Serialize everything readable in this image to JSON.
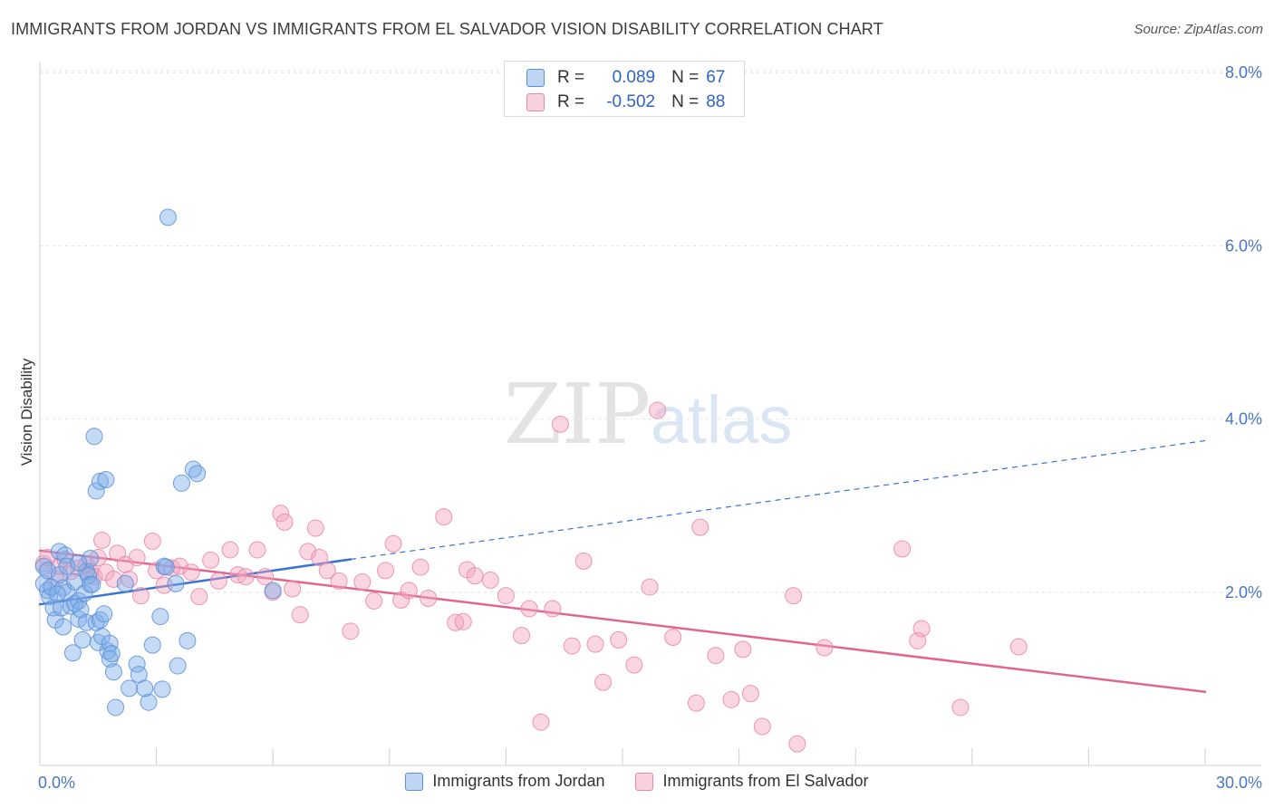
{
  "title": "IMMIGRANTS FROM JORDAN VS IMMIGRANTS FROM EL SALVADOR VISION DISABILITY CORRELATION CHART",
  "source": "Source: ZipAtlas.com",
  "watermark": {
    "zip": "ZIP",
    "atlas": "atlas"
  },
  "legend_top": [
    {
      "r_label": "R =",
      "r_value": "0.089",
      "n_label": "N =",
      "n_value": "67",
      "color": "#7faee8"
    },
    {
      "r_label": "R =",
      "r_value": "-0.502",
      "n_label": "N =",
      "n_value": "88",
      "color": "#f2a3be"
    }
  ],
  "chart_data": {
    "type": "scatter",
    "title": "IMMIGRANTS FROM JORDAN VS IMMIGRANTS FROM EL SALVADOR VISION DISABILITY CORRELATION CHART",
    "xlabel": "",
    "ylabel": "Vision Disability",
    "xlim": [
      0,
      30
    ],
    "ylim": [
      0,
      8
    ],
    "x_tick_labels": [
      "0.0%",
      "30.0%"
    ],
    "y_ticks": [
      2,
      4,
      6,
      8
    ],
    "y_tick_labels": [
      "2.0%",
      "4.0%",
      "6.0%",
      "8.0%"
    ],
    "grid": true,
    "legend_position": "bottom",
    "series": [
      {
        "name": "Immigrants from Jordan",
        "color": "#7faee8",
        "stroke": "#5b8fd6",
        "trend": {
          "x": [
            0,
            8
          ],
          "y": [
            1.86,
            2.38
          ],
          "dashed_to": [
            30,
            3.75
          ],
          "color": "#3a72d0"
        },
        "points": [
          [
            0.1,
            2.3
          ],
          [
            0.1,
            2.1
          ],
          [
            0.2,
            2.02
          ],
          [
            0.2,
            2.25
          ],
          [
            0.25,
            1.95
          ],
          [
            0.3,
            2.06
          ],
          [
            0.35,
            1.82
          ],
          [
            0.4,
            1.68
          ],
          [
            0.5,
            2.2
          ],
          [
            0.5,
            2.47
          ],
          [
            0.55,
            1.82
          ],
          [
            0.6,
            1.6
          ],
          [
            0.6,
            2.05
          ],
          [
            0.65,
            2.43
          ],
          [
            0.7,
            2.0
          ],
          [
            0.7,
            2.3
          ],
          [
            0.8,
            1.84
          ],
          [
            0.85,
            1.3
          ],
          [
            0.9,
            1.87
          ],
          [
            0.9,
            2.12
          ],
          [
            1.0,
            1.9
          ],
          [
            1.0,
            1.69
          ],
          [
            1.05,
            1.8
          ],
          [
            1.1,
            1.45
          ],
          [
            1.15,
            1.99
          ],
          [
            1.2,
            2.24
          ],
          [
            1.2,
            1.65
          ],
          [
            1.25,
            2.19
          ],
          [
            1.3,
            2.09
          ],
          [
            1.3,
            2.39
          ],
          [
            1.35,
            2.09
          ],
          [
            1.4,
            3.8
          ],
          [
            1.45,
            3.17
          ],
          [
            1.45,
            1.65
          ],
          [
            1.5,
            1.42
          ],
          [
            1.55,
            3.28
          ],
          [
            1.55,
            1.68
          ],
          [
            1.6,
            1.49
          ],
          [
            1.65,
            1.75
          ],
          [
            1.7,
            3.3
          ],
          [
            1.75,
            1.32
          ],
          [
            1.8,
            1.41
          ],
          [
            1.8,
            1.23
          ],
          [
            1.85,
            1.29
          ],
          [
            1.9,
            1.08
          ],
          [
            1.95,
            0.67
          ],
          [
            2.2,
            2.1
          ],
          [
            2.3,
            0.89
          ],
          [
            2.5,
            1.17
          ],
          [
            2.55,
            1.05
          ],
          [
            2.8,
            0.73
          ],
          [
            2.9,
            1.39
          ],
          [
            3.1,
            1.72
          ],
          [
            3.15,
            0.88
          ],
          [
            3.2,
            2.3
          ],
          [
            3.3,
            6.33
          ],
          [
            3.5,
            2.1
          ],
          [
            3.55,
            1.15
          ],
          [
            3.65,
            3.26
          ],
          [
            3.8,
            1.44
          ],
          [
            3.95,
            3.42
          ],
          [
            4.05,
            3.37
          ],
          [
            6.0,
            2.02
          ],
          [
            3.25,
            2.29
          ],
          [
            0.45,
            1.98
          ],
          [
            1.0,
            2.34
          ],
          [
            2.7,
            0.89
          ]
        ]
      },
      {
        "name": "Immigrants from El Salvador",
        "color": "#f2a3be",
        "stroke": "#e985a8",
        "trend": {
          "x": [
            0,
            30
          ],
          "y": [
            2.48,
            0.85
          ],
          "color": "#e0668f"
        },
        "points": [
          [
            0.1,
            2.33
          ],
          [
            0.2,
            2.4
          ],
          [
            0.4,
            2.15
          ],
          [
            0.5,
            2.3
          ],
          [
            0.65,
            2.38
          ],
          [
            0.8,
            2.24
          ],
          [
            1.0,
            2.28
          ],
          [
            1.2,
            2.32
          ],
          [
            1.3,
            2.24
          ],
          [
            1.4,
            2.18
          ],
          [
            1.5,
            2.4
          ],
          [
            1.6,
            2.6
          ],
          [
            1.7,
            2.23
          ],
          [
            1.9,
            2.15
          ],
          [
            2.0,
            2.45
          ],
          [
            2.2,
            2.32
          ],
          [
            2.3,
            2.15
          ],
          [
            2.5,
            2.4
          ],
          [
            2.6,
            1.96
          ],
          [
            2.9,
            2.59
          ],
          [
            3.0,
            2.25
          ],
          [
            3.2,
            2.08
          ],
          [
            3.4,
            2.28
          ],
          [
            3.6,
            2.3
          ],
          [
            3.9,
            2.23
          ],
          [
            4.1,
            1.95
          ],
          [
            4.4,
            2.37
          ],
          [
            4.6,
            2.13
          ],
          [
            4.9,
            2.49
          ],
          [
            5.1,
            2.2
          ],
          [
            5.3,
            2.18
          ],
          [
            5.6,
            2.49
          ],
          [
            5.8,
            2.18
          ],
          [
            6.0,
            2.0
          ],
          [
            6.2,
            2.91
          ],
          [
            6.3,
            2.81
          ],
          [
            6.5,
            2.04
          ],
          [
            6.7,
            1.74
          ],
          [
            6.9,
            2.47
          ],
          [
            7.1,
            2.74
          ],
          [
            7.2,
            2.4
          ],
          [
            7.4,
            2.25
          ],
          [
            7.7,
            2.13
          ],
          [
            8.0,
            1.55
          ],
          [
            8.3,
            2.12
          ],
          [
            8.6,
            1.9
          ],
          [
            8.9,
            2.25
          ],
          [
            9.1,
            2.56
          ],
          [
            9.3,
            1.91
          ],
          [
            9.5,
            2.02
          ],
          [
            9.8,
            2.29
          ],
          [
            10.0,
            1.93
          ],
          [
            10.4,
            2.87
          ],
          [
            10.7,
            1.65
          ],
          [
            10.9,
            1.66
          ],
          [
            11.0,
            2.26
          ],
          [
            11.2,
            2.19
          ],
          [
            11.6,
            2.14
          ],
          [
            12.0,
            1.96
          ],
          [
            12.4,
            1.5
          ],
          [
            12.6,
            1.81
          ],
          [
            12.9,
            0.5
          ],
          [
            13.2,
            1.81
          ],
          [
            13.4,
            3.94
          ],
          [
            13.7,
            1.38
          ],
          [
            14.0,
            2.36
          ],
          [
            14.3,
            1.4
          ],
          [
            14.5,
            0.96
          ],
          [
            14.9,
            1.45
          ],
          [
            15.3,
            1.16
          ],
          [
            15.7,
            2.06
          ],
          [
            15.9,
            4.1
          ],
          [
            16.3,
            1.48
          ],
          [
            16.9,
            0.72
          ],
          [
            17.0,
            2.75
          ],
          [
            17.4,
            1.27
          ],
          [
            17.8,
            0.76
          ],
          [
            18.1,
            1.34
          ],
          [
            18.3,
            0.83
          ],
          [
            18.6,
            0.45
          ],
          [
            19.4,
            1.96
          ],
          [
            19.5,
            0.25
          ],
          [
            20.2,
            1.36
          ],
          [
            22.2,
            2.5
          ],
          [
            22.6,
            1.44
          ],
          [
            22.7,
            1.58
          ],
          [
            23.7,
            0.67
          ],
          [
            25.2,
            1.37
          ]
        ]
      }
    ]
  }
}
